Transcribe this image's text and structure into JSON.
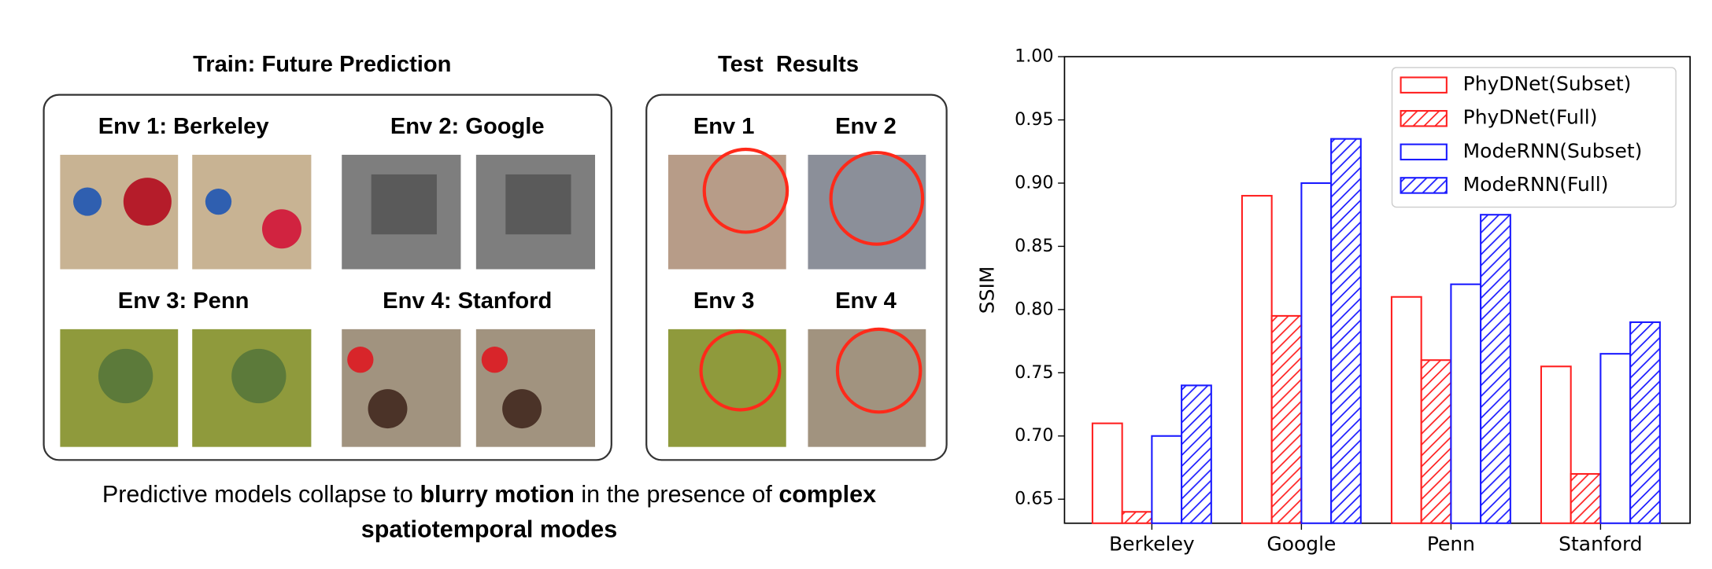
{
  "figure": {
    "train_title": "Train: Future Prediction",
    "test_title": "Test  Results",
    "train_envs": [
      "Env 1: Berkeley",
      "Env 2: Google",
      "Env 3: Penn",
      "Env 4: Stanford"
    ],
    "test_envs": [
      "Env 1",
      "Env 2",
      "Env 3",
      "Env 4"
    ],
    "caption": [
      [
        {
          "text": "Predictive models collapse to ",
          "bold": false
        },
        {
          "text": "blurry motion",
          "bold": true
        },
        {
          "text": " in the presence of ",
          "bold": false
        },
        {
          "text": "complex",
          "bold": true
        }
      ],
      [
        {
          "text": "spatiotemporal modes",
          "bold": true
        }
      ]
    ]
  },
  "chart_data": {
    "type": "bar",
    "y_label": "SSIM",
    "categories": [
      "Berkeley",
      "Google",
      "Penn",
      "Stanford"
    ],
    "series": [
      {
        "name": "PhyDNet(Subset)",
        "color": "#ff2020",
        "hatch": false,
        "values": [
          0.71,
          0.89,
          0.81,
          0.755
        ]
      },
      {
        "name": "PhyDNet(Full)",
        "color": "#ff2020",
        "hatch": true,
        "values": [
          0.64,
          0.795,
          0.76,
          0.67
        ]
      },
      {
        "name": "ModeRNN(Subset)",
        "color": "#1a1aff",
        "hatch": false,
        "values": [
          0.7,
          0.9,
          0.82,
          0.765
        ]
      },
      {
        "name": "ModeRNN(Full)",
        "color": "#1a1aff",
        "hatch": true,
        "values": [
          0.74,
          0.935,
          0.875,
          0.79
        ]
      }
    ],
    "ylim": [
      0.631,
      1.0
    ],
    "yticks": [
      0.65,
      {
        "value": 0.7,
        "label": "0.70"
      },
      0.75,
      {
        "value": 0.8,
        "label": "0.80"
      },
      0.85,
      {
        "value": 0.9,
        "label": "0.90"
      },
      0.95,
      {
        "value": 1.0,
        "label": "1.00"
      }
    ],
    "grid": false,
    "legend": "upper right"
  }
}
